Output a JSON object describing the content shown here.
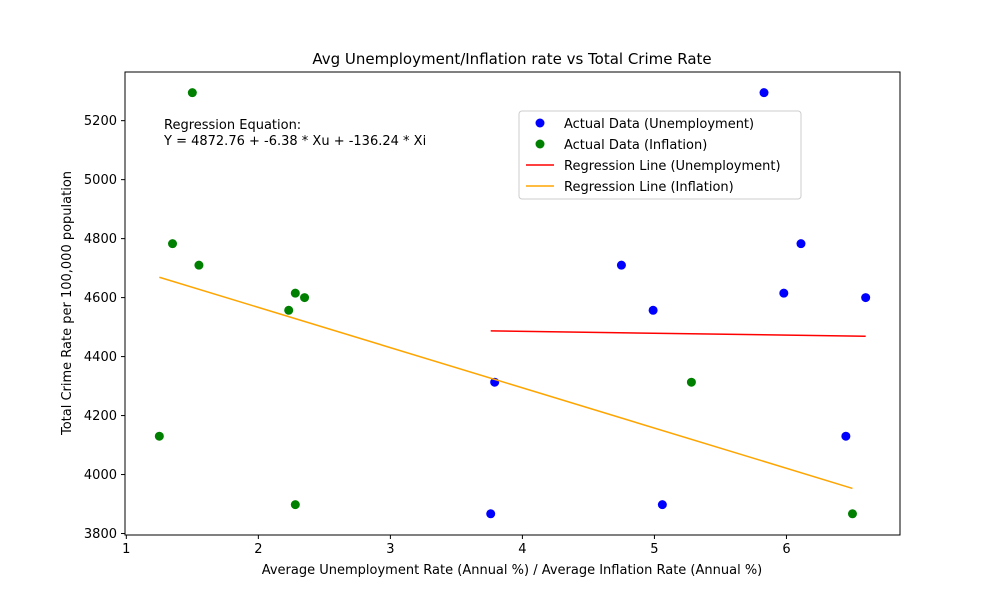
{
  "chart_data": {
    "type": "scatter",
    "title": "Avg Unemployment/Inflation rate vs Total Crime Rate",
    "xlabel": "Average Unemployment Rate (Annual %) / Average Inflation Rate (Annual %)",
    "ylabel": "Total Crime Rate per 100,000 population",
    "xlim": [
      0.99,
      6.86
    ],
    "ylim": [
      3795,
      5365
    ],
    "x_ticks": [
      1,
      2,
      3,
      4,
      5,
      6
    ],
    "y_ticks": [
      3800,
      4000,
      4200,
      4400,
      4600,
      4800,
      5000,
      5200
    ],
    "grid": false,
    "legend_position": "upper-right",
    "annotation": [
      "Regression Equation:",
      "Y = 4872.76 + -6.38 * Xu + -136.24 * Xi"
    ],
    "series": [
      {
        "name": "Actual Data (Unemployment)",
        "kind": "scatter",
        "color": "#0000ff",
        "points": [
          [
            5.83,
            5295
          ],
          [
            6.11,
            4783
          ],
          [
            4.75,
            4710
          ],
          [
            5.98,
            4615
          ],
          [
            6.6,
            4600
          ],
          [
            4.99,
            4557
          ],
          [
            3.79,
            4313
          ],
          [
            6.45,
            4130
          ],
          [
            5.06,
            3898
          ],
          [
            3.76,
            3867
          ]
        ]
      },
      {
        "name": "Actual Data (Inflation)",
        "kind": "scatter",
        "color": "#008000",
        "points": [
          [
            1.5,
            5295
          ],
          [
            1.35,
            4783
          ],
          [
            1.55,
            4710
          ],
          [
            2.28,
            4615
          ],
          [
            2.35,
            4600
          ],
          [
            2.23,
            4557
          ],
          [
            5.28,
            4313
          ],
          [
            1.25,
            4130
          ],
          [
            2.28,
            3898
          ],
          [
            6.5,
            3867
          ]
        ]
      },
      {
        "name": "Regression Line (Unemployment)",
        "kind": "line",
        "color": "#ff0000",
        "points": [
          [
            3.76,
            4487
          ],
          [
            6.6,
            4469
          ]
        ]
      },
      {
        "name": "Regression Line (Inflation)",
        "kind": "line",
        "color": "#ffa500",
        "points": [
          [
            1.25,
            4669
          ],
          [
            6.5,
            3953
          ]
        ]
      }
    ]
  }
}
